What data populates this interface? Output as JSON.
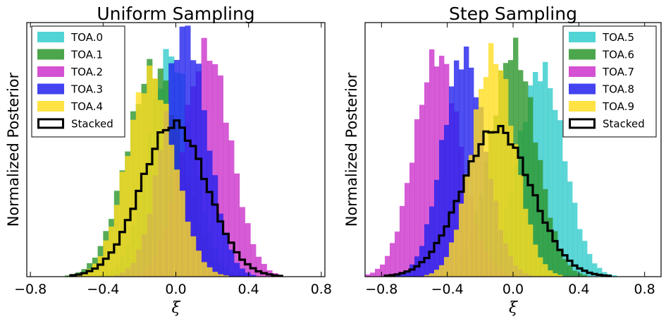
{
  "chart_data": [
    {
      "type": "histogram",
      "title": "Uniform Sampling",
      "xlabel": "ξ",
      "ylabel": "Normalized Posterior",
      "xlim": [
        -0.82,
        0.82
      ],
      "xticks": [
        "−0.8",
        "−0.4",
        "0.0",
        "0.4",
        "0.8"
      ],
      "xtick_values": [
        -0.8,
        -0.4,
        0.0,
        0.4,
        0.8
      ],
      "yticks_shown": false,
      "legend_position": "top-left",
      "bin_width": 0.03,
      "series": [
        {
          "name": "TOA.0",
          "color": "#33cccc",
          "mean": -0.03,
          "sd": 0.12,
          "peak": 0.9,
          "style": "filled"
        },
        {
          "name": "TOA.1",
          "color": "#2d962d",
          "mean": -0.12,
          "sd": 0.15,
          "peak": 0.85,
          "style": "filled"
        },
        {
          "name": "TOA.2",
          "color": "#cc33cc",
          "mean": 0.17,
          "sd": 0.13,
          "peak": 0.92,
          "style": "filled"
        },
        {
          "name": "TOA.3",
          "color": "#2222ee",
          "mean": 0.05,
          "sd": 0.12,
          "peak": 1.0,
          "style": "filled"
        },
        {
          "name": "TOA.4",
          "color": "#ffdd22",
          "mean": -0.14,
          "sd": 0.13,
          "peak": 0.82,
          "style": "filled"
        },
        {
          "name": "Stacked",
          "color": "#000000",
          "mean": -0.01,
          "sd": 0.18,
          "peak": 0.62,
          "style": "step"
        }
      ]
    },
    {
      "type": "histogram",
      "title": "Step Sampling",
      "xlabel": "ξ",
      "ylabel": "Normalized Posterior",
      "xlim": [
        -0.9,
        0.9
      ],
      "xticks": [
        "−0.8",
        "−0.4",
        "0.0",
        "0.4",
        "0.8"
      ],
      "xtick_values": [
        -0.8,
        -0.4,
        0.0,
        0.4,
        0.8
      ],
      "yticks_shown": false,
      "legend_position": "top-right",
      "bin_width": 0.03,
      "series": [
        {
          "name": "TOA.5",
          "color": "#33cccc",
          "mean": 0.17,
          "sd": 0.14,
          "peak": 0.84,
          "style": "filled"
        },
        {
          "name": "TOA.6",
          "color": "#2d962d",
          "mean": 0.0,
          "sd": 0.14,
          "peak": 0.92,
          "style": "filled"
        },
        {
          "name": "TOA.7",
          "color": "#cc33cc",
          "mean": -0.46,
          "sd": 0.14,
          "peak": 0.9,
          "style": "filled"
        },
        {
          "name": "TOA.8",
          "color": "#2222ee",
          "mean": -0.3,
          "sd": 0.13,
          "peak": 0.9,
          "style": "filled"
        },
        {
          "name": "TOA.9",
          "color": "#ffdd22",
          "mean": -0.12,
          "sd": 0.13,
          "peak": 0.9,
          "style": "filled"
        },
        {
          "name": "Stacked",
          "color": "#000000",
          "mean": -0.1,
          "sd": 0.21,
          "peak": 0.6,
          "style": "step"
        }
      ]
    }
  ]
}
